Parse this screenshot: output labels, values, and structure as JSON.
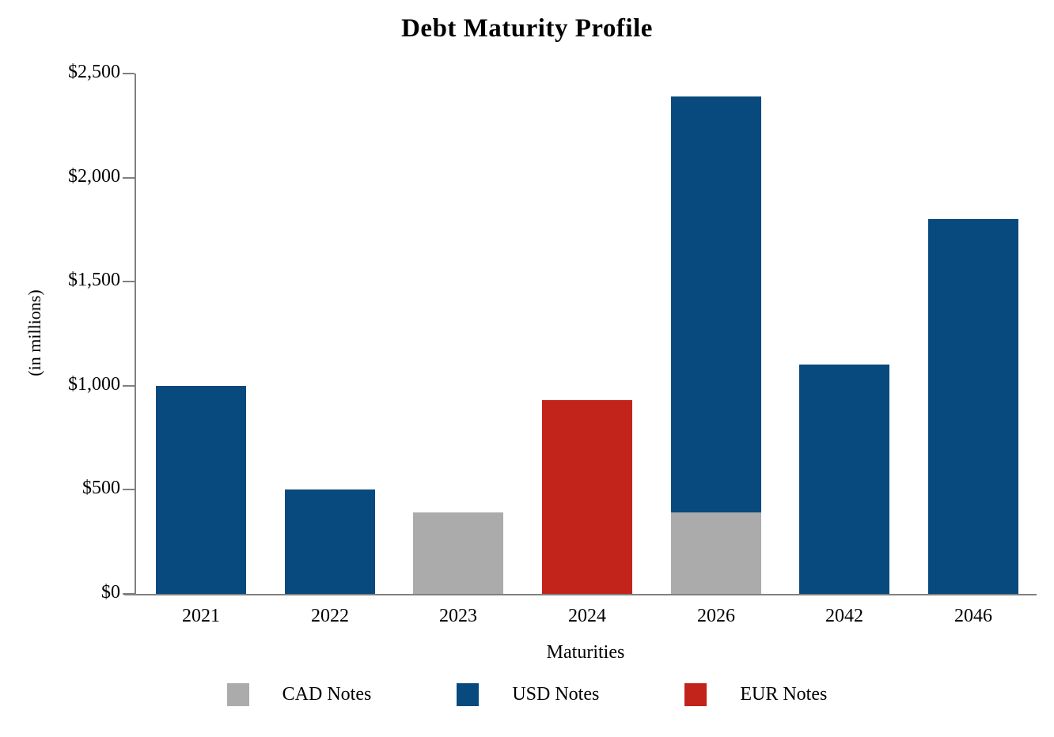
{
  "title": "Debt Maturity Profile",
  "chart_data": {
    "type": "bar",
    "stacked": true,
    "title": "Debt Maturity Profile",
    "xlabel": "Maturities",
    "ylabel": "(in millions)",
    "categories": [
      "2021",
      "2022",
      "2023",
      "2024",
      "2026",
      "2042",
      "2046"
    ],
    "series": [
      {
        "name": "CAD Notes",
        "color": "#ABABAB",
        "values": [
          0,
          0,
          390,
          0,
          390,
          0,
          0
        ]
      },
      {
        "name": "USD Notes",
        "color": "#084A7D",
        "values": [
          1000,
          500,
          0,
          0,
          2000,
          1100,
          1800
        ]
      },
      {
        "name": "EUR Notes",
        "color": "#C2231A",
        "values": [
          0,
          0,
          0,
          930,
          0,
          0,
          0
        ]
      }
    ],
    "ylim": [
      0,
      2500
    ],
    "yticks": [
      0,
      500,
      1000,
      1500,
      2000,
      2500
    ],
    "ytick_labels": [
      "$0",
      "$500",
      "$1,000",
      "$1,500",
      "$2,000",
      "$2,500"
    ],
    "grid": false,
    "legend_position": "bottom",
    "axis_color": "#808080",
    "text_color": "#000000"
  }
}
